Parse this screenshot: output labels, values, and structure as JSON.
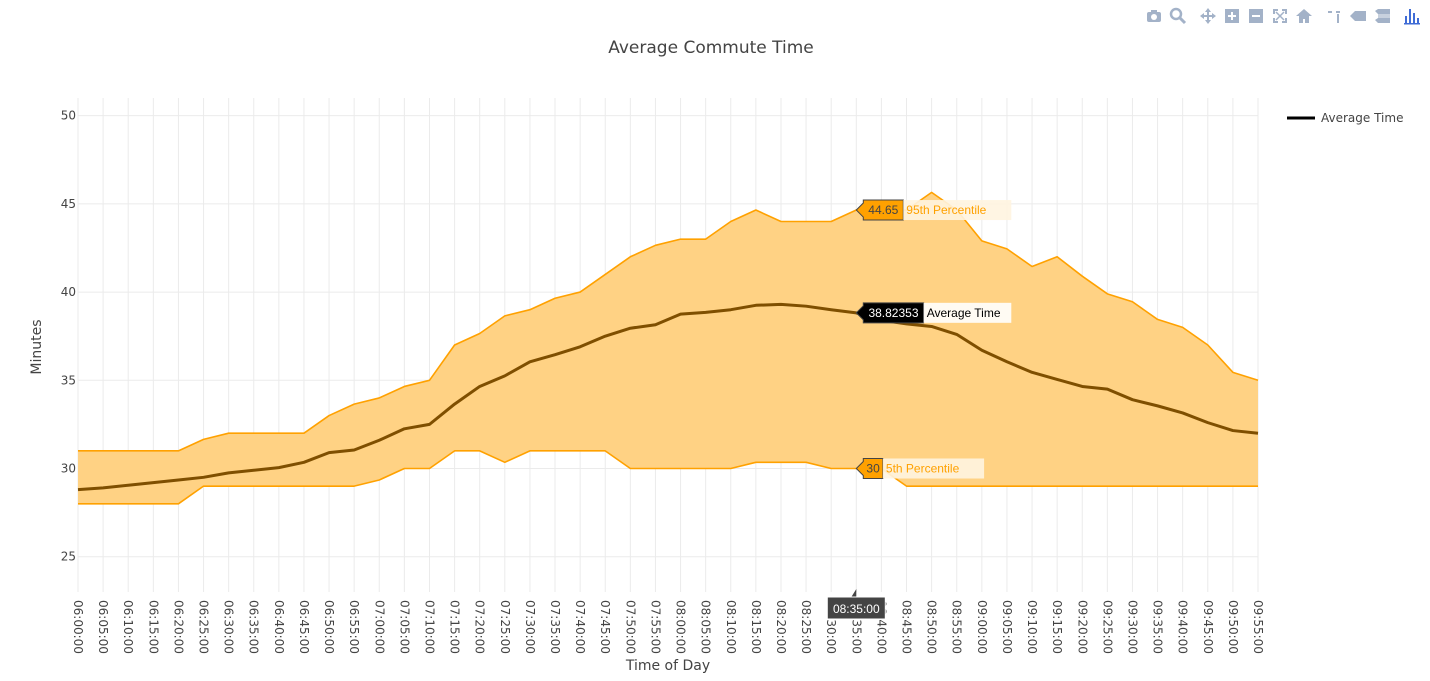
{
  "toolbar": {
    "icons": [
      "camera-icon",
      "zoom-icon",
      "pan-icon",
      "zoom-in-icon",
      "zoom-out-icon",
      "autoscale-icon",
      "reset-axes-icon",
      "spike-lines-icon",
      "hover-closest-icon",
      "hover-compare-icon",
      "plotly-logo-icon"
    ],
    "icon_color": "#a3b2c8",
    "logo_color": "#3f6cd6"
  },
  "chart_data": {
    "type": "line",
    "title": "Average Commute Time",
    "xlabel": "Time of Day",
    "ylabel": "Minutes",
    "ylim": [
      23,
      51
    ],
    "yticks": [
      25,
      30,
      35,
      40,
      45,
      50
    ],
    "grid": true,
    "legend_position": "top-right",
    "x": [
      "06:00:00",
      "06:05:00",
      "06:10:00",
      "06:15:00",
      "06:20:00",
      "06:25:00",
      "06:30:00",
      "06:35:00",
      "06:40:00",
      "06:45:00",
      "06:50:00",
      "06:55:00",
      "07:00:00",
      "07:05:00",
      "07:10:00",
      "07:15:00",
      "07:20:00",
      "07:25:00",
      "07:30:00",
      "07:35:00",
      "07:40:00",
      "07:45:00",
      "07:50:00",
      "07:55:00",
      "08:00:00",
      "08:05:00",
      "08:10:00",
      "08:15:00",
      "08:20:00",
      "08:25:00",
      "08:30:00",
      "08:35:00",
      "08:40:00",
      "08:45:00",
      "08:50:00",
      "08:55:00",
      "09:00:00",
      "09:05:00",
      "09:10:00",
      "09:15:00",
      "09:20:00",
      "09:25:00",
      "09:30:00",
      "09:35:00",
      "09:40:00",
      "09:45:00",
      "09:50:00",
      "09:55:00"
    ],
    "series": [
      {
        "name": "Average Time",
        "in_legend": true,
        "color": "#7f4f00",
        "values": [
          28.8,
          28.9,
          29.05,
          29.2,
          29.35,
          29.5,
          29.75,
          29.9,
          30.05,
          30.35,
          30.9,
          31.05,
          31.6,
          32.25,
          32.5,
          33.65,
          34.65,
          35.25,
          36.05,
          36.45,
          36.9,
          37.5,
          37.95,
          38.15,
          38.75,
          38.85,
          39.0,
          39.25,
          39.3,
          39.2,
          39.0,
          38.82,
          38.4,
          38.2,
          38.05,
          37.6,
          36.7,
          36.05,
          35.45,
          35.05,
          34.65,
          34.5,
          33.9,
          33.55,
          33.15,
          32.6,
          32.15,
          32.0
        ]
      },
      {
        "name": "95th Percentile",
        "in_legend": false,
        "color": "#ffa100",
        "values": [
          31.0,
          31.0,
          31.0,
          31.0,
          31.0,
          31.65,
          32.0,
          32.0,
          32.0,
          32.0,
          33.0,
          33.65,
          34.0,
          34.65,
          35.0,
          37.0,
          37.65,
          38.65,
          39.0,
          39.65,
          40.0,
          41.0,
          42.0,
          42.65,
          43.0,
          43.0,
          44.0,
          44.65,
          44.0,
          44.0,
          44.0,
          44.65,
          44.65,
          44.65,
          45.65,
          44.65,
          42.9,
          42.45,
          41.45,
          42.0,
          40.9,
          39.9,
          39.45,
          38.45,
          38.0,
          37.0,
          35.45,
          35.0
        ]
      },
      {
        "name": "5th Percentile",
        "in_legend": false,
        "color": "#ffa100",
        "values": [
          28.0,
          28.0,
          28.0,
          28.0,
          28.0,
          29.0,
          29.0,
          29.0,
          29.0,
          29.0,
          29.0,
          29.0,
          29.35,
          30.0,
          30.0,
          31.0,
          31.0,
          30.35,
          31.0,
          31.0,
          31.0,
          31.0,
          30.0,
          30.0,
          30.0,
          30.0,
          30.0,
          30.35,
          30.35,
          30.35,
          30.0,
          30.0,
          30.0,
          29.0,
          29.0,
          29.0,
          29.0,
          29.0,
          29.0,
          29.0,
          29.0,
          29.0,
          29.0,
          29.0,
          29.0,
          29.0,
          29.0,
          29.0
        ]
      }
    ],
    "band_fill_color": "#ffd284",
    "hover": {
      "x_label": "08:35:00",
      "points": [
        {
          "series": "95th Percentile",
          "value_text": "44.65",
          "name_text": "95th Percentile",
          "y": 44.65
        },
        {
          "series": "Average Time",
          "value_text": "38.82353",
          "name_text": "Average Time",
          "y": 38.82353
        },
        {
          "series": "5th Percentile",
          "value_text": "30",
          "name_text": "5th Percentile",
          "y": 30
        }
      ]
    }
  }
}
